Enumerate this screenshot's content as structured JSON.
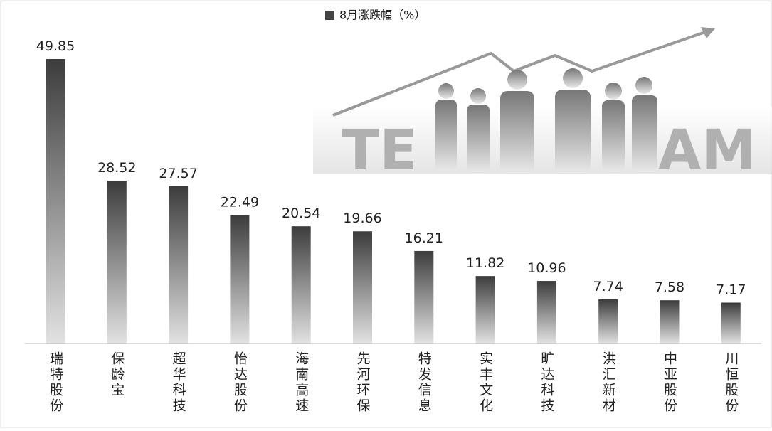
{
  "chart_data": {
    "type": "bar",
    "legend_label": "8月涨跌幅（%）",
    "color": "#444444",
    "categories": [
      "瑞特股份",
      "保龄宝",
      "超华科技",
      "怡达股份",
      "海南高速",
      "先河环保",
      "特发信息",
      "实丰文化",
      "旷达科技",
      "洪汇新材",
      "中亚股份",
      "川恒股份"
    ],
    "values": [
      49.85,
      28.52,
      27.57,
      22.49,
      20.54,
      19.66,
      16.21,
      11.82,
      10.96,
      7.74,
      7.58,
      7.17
    ],
    "background_text": [
      "TE",
      "AM"
    ]
  }
}
